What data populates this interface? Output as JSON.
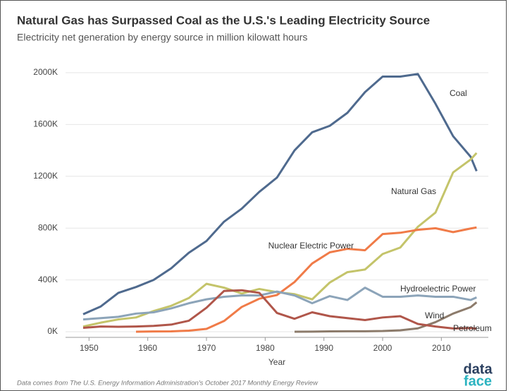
{
  "chart_data": {
    "type": "line",
    "title": "Natural Gas has Surpassed Coal as the U.S.'s Leading Electricity Source",
    "subtitle": "Electricity net generation by energy source in million kilowatt hours",
    "x_label": "Year",
    "source": "Data comes from The U.S. Energy Information Administration's October 2017 Monthly Energy Review",
    "logo": [
      "data",
      "face"
    ],
    "x": [
      1949,
      1952,
      1955,
      1958,
      1961,
      1964,
      1967,
      1970,
      1973,
      1976,
      1979,
      1982,
      1985,
      1988,
      1991,
      1994,
      1997,
      2000,
      2003,
      2006,
      2009,
      2012,
      2015,
      2016
    ],
    "series": [
      {
        "name": "Coal",
        "color": "#4f6a8e",
        "values": [
          135000,
          195000,
          300000,
          345000,
          400000,
          490000,
          610000,
          700000,
          850000,
          950000,
          1080000,
          1190000,
          1400000,
          1540000,
          1590000,
          1690000,
          1850000,
          1970000,
          1970000,
          1990000,
          1760000,
          1510000,
          1350000,
          1240000
        ]
      },
      {
        "name": "Natural Gas",
        "color": "#c4c46a",
        "values": [
          40000,
          70000,
          95000,
          110000,
          160000,
          200000,
          260000,
          370000,
          340000,
          295000,
          330000,
          305000,
          290000,
          250000,
          380000,
          460000,
          480000,
          600000,
          650000,
          810000,
          920000,
          1230000,
          1330000,
          1380000
        ]
      },
      {
        "name": "Nuclear Electric Power",
        "color": "#f07b48",
        "values": [
          null,
          null,
          null,
          200,
          2000,
          3000,
          8000,
          22000,
          83000,
          191000,
          255000,
          283000,
          384000,
          527000,
          613000,
          640000,
          629000,
          754000,
          764000,
          787000,
          799000,
          769000,
          797000,
          805000
        ]
      },
      {
        "name": "Hydroelectric Power",
        "color": "#8ca4b9",
        "values": [
          95000,
          105000,
          115000,
          140000,
          150000,
          180000,
          220000,
          250000,
          270000,
          280000,
          280000,
          310000,
          280000,
          220000,
          275000,
          245000,
          340000,
          270000,
          270000,
          280000,
          270000,
          270000,
          245000,
          265000
        ]
      },
      {
        "name": "Wind",
        "color": "#8c7b6b",
        "values": [
          null,
          null,
          null,
          null,
          null,
          null,
          null,
          null,
          null,
          null,
          null,
          null,
          0,
          1000,
          3000,
          3500,
          3300,
          5600,
          11000,
          26000,
          74000,
          140000,
          190000,
          227000
        ]
      },
      {
        "name": "Petroleum",
        "color": "#b0564a",
        "values": [
          30000,
          40000,
          38000,
          40000,
          45000,
          55000,
          85000,
          185000,
          315000,
          320000,
          300000,
          145000,
          100000,
          150000,
          120000,
          105000,
          90000,
          110000,
          120000,
          60000,
          40000,
          25000,
          28000,
          24000
        ]
      }
    ],
    "xlim": [
      1946,
      2018
    ],
    "xticks": [
      1950,
      1960,
      1970,
      1980,
      1990,
      2000,
      2010
    ],
    "ylim": [
      0,
      2000000
    ],
    "yticks": [
      {
        "value": 0,
        "label": "0K"
      },
      {
        "value": 400000,
        "label": "400K"
      },
      {
        "value": 800000,
        "label": "800K"
      },
      {
        "value": 1200000,
        "label": "1200K"
      },
      {
        "value": 1600000,
        "label": "1600K"
      },
      {
        "value": 2000000,
        "label": "2000K"
      }
    ],
    "grid": true
  }
}
